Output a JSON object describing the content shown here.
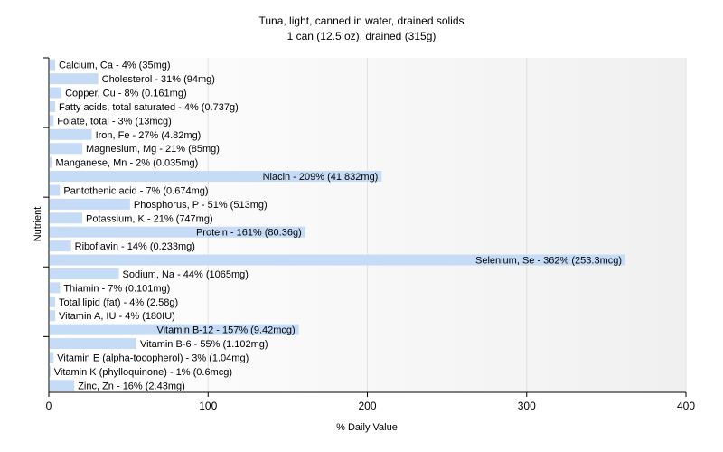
{
  "chart_data": {
    "type": "bar",
    "orientation": "horizontal",
    "title": "Tuna, light, canned in water, drained solids",
    "subtitle": "1 can (12.5 oz), drained (315g)",
    "xlabel": "% Daily Value",
    "ylabel": "Nutrient",
    "xlim": [
      0,
      400
    ],
    "xticks": [
      0,
      100,
      200,
      300,
      400
    ],
    "grid": true,
    "bar_color": "#c6dcf6",
    "categories": [
      "Calcium, Ca",
      "Cholesterol",
      "Copper, Cu",
      "Fatty acids, total saturated",
      "Folate, total",
      "Iron, Fe",
      "Magnesium, Mg",
      "Manganese, Mn",
      "Niacin",
      "Pantothenic acid",
      "Phosphorus, P",
      "Potassium, K",
      "Protein",
      "Riboflavin",
      "Selenium, Se",
      "Sodium, Na",
      "Thiamin",
      "Total lipid (fat)",
      "Vitamin A, IU",
      "Vitamin B-12",
      "Vitamin B-6",
      "Vitamin E (alpha-tocopherol)",
      "Vitamin K (phylloquinone)",
      "Zinc, Zn"
    ],
    "values": [
      4,
      31,
      8,
      4,
      3,
      27,
      21,
      2,
      209,
      7,
      51,
      21,
      161,
      14,
      362,
      44,
      7,
      4,
      4,
      157,
      55,
      3,
      1,
      16
    ],
    "amounts": [
      "35mg",
      "94mg",
      "0.161mg",
      "0.737g",
      "13mcg",
      "4.82mg",
      "85mg",
      "0.035mg",
      "41.832mg",
      "0.674mg",
      "513mg",
      "747mg",
      "80.36g",
      "0.233mg",
      "253.3mcg",
      "1065mg",
      "0.101mg",
      "2.58g",
      "180IU",
      "9.42mcg",
      "1.102mg",
      "1.04mg",
      "0.6mcg",
      "2.43mg"
    ],
    "labels": [
      "Calcium, Ca - 4% (35mg)",
      "Cholesterol - 31% (94mg)",
      "Copper, Cu - 8% (0.161mg)",
      "Fatty acids, total saturated - 4% (0.737g)",
      "Folate, total - 3% (13mcg)",
      "Iron, Fe - 27% (4.82mg)",
      "Magnesium, Mg - 21% (85mg)",
      "Manganese, Mn - 2% (0.035mg)",
      "Niacin - 209% (41.832mg)",
      "Pantothenic acid - 7% (0.674mg)",
      "Phosphorus, P - 51% (513mg)",
      "Potassium, K - 21% (747mg)",
      "Protein - 161% (80.36g)",
      "Riboflavin - 14% (0.233mg)",
      "Selenium, Se - 362% (253.3mcg)",
      "Sodium, Na - 44% (1065mg)",
      "Thiamin - 7% (0.101mg)",
      "Total lipid (fat) - 4% (2.58g)",
      "Vitamin A, IU - 4% (180IU)",
      "Vitamin B-12 - 157% (9.42mcg)",
      "Vitamin B-6 - 55% (1.102mg)",
      "Vitamin E (alpha-tocopherol) - 3% (1.04mg)",
      "Vitamin K (phylloquinone) - 1% (0.6mcg)",
      "Zinc, Zn - 16% (2.43mg)"
    ]
  }
}
